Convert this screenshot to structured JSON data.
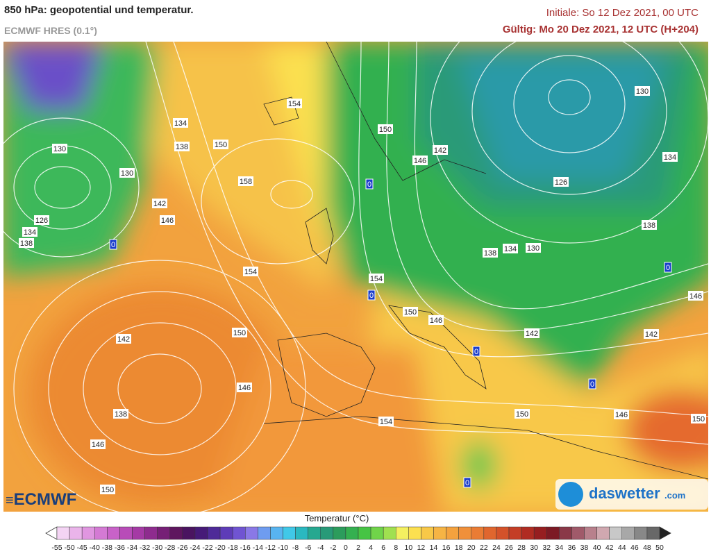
{
  "header": {
    "title": "850 hPa: geopotential und temperatur.",
    "model": "ECMWF HRES (0.1°)",
    "initial": "Initiale: So 12 Dez 2021, 00 UTC",
    "valid": "Gültig: Mo 20 Dez 2021, 12 UTC (H+204)"
  },
  "map": {
    "contour_labels": [
      "130",
      "134",
      "138",
      "150",
      "154",
      "150",
      "142",
      "146",
      "130",
      "134",
      "126",
      "0",
      "158",
      "130",
      "142",
      "146",
      "126",
      "134",
      "138",
      "0",
      "138",
      "138",
      "134",
      "130",
      "0",
      "154",
      "154",
      "0",
      "146",
      "150",
      "146",
      "150",
      "142",
      "142",
      "142",
      "0",
      "146",
      "0",
      "138",
      "150",
      "146",
      "150",
      "154",
      "146",
      "0",
      "150"
    ]
  },
  "logos": {
    "ecmwf": "ECMWF",
    "daswetter": "daswetter",
    "daswetter_suffix": ".com"
  },
  "colorbar": {
    "title": "Temperatur (°C)",
    "ticks": [
      -55,
      -50,
      -45,
      -40,
      -38,
      -36,
      -34,
      -32,
      -30,
      -28,
      -26,
      -24,
      -22,
      -20,
      -18,
      -16,
      -14,
      -12,
      -10,
      -8,
      -6,
      -4,
      -2,
      0,
      2,
      4,
      6,
      8,
      10,
      12,
      14,
      16,
      18,
      20,
      22,
      24,
      26,
      28,
      30,
      32,
      34,
      36,
      38,
      40,
      42,
      44,
      46,
      48,
      50
    ],
    "colors": [
      "#f4d4f4",
      "#eab4ea",
      "#e096e0",
      "#d47ad4",
      "#c862c8",
      "#b84cb8",
      "#a53aa5",
      "#8e2c8e",
      "#761f76",
      "#5e165e",
      "#4a1460",
      "#461a78",
      "#4e2a98",
      "#5e3cb8",
      "#7054d2",
      "#8a78e6",
      "#6e9cf0",
      "#58b4f0",
      "#40c8e8",
      "#2ab8c0",
      "#26a890",
      "#289a78",
      "#2c9c5c",
      "#34b050",
      "#46c444",
      "#70d44a",
      "#a0e050",
      "#f4f060",
      "#fce050",
      "#f8c848",
      "#f6b444",
      "#f4a23e",
      "#f0903a",
      "#ea7c34",
      "#e0662e",
      "#d4522a",
      "#c43e26",
      "#b02c22",
      "#961e20",
      "#7c1a24",
      "#8a3848",
      "#a05a6a",
      "#b8808c",
      "#d0a8b0",
      "#c8c8c8",
      "#a8a8a8",
      "#888888",
      "#686868"
    ]
  }
}
